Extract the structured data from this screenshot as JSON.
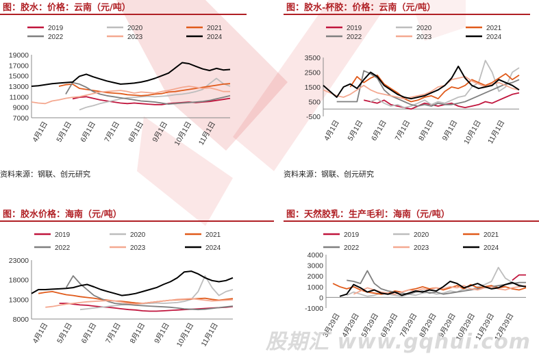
{
  "watermark": {
    "text": "股期汇 www.gqhui.com"
  },
  "panels": [
    {
      "title": "图：胶水：价格：云南（元/吨）",
      "source": "资料来源：钢联、创元研究",
      "chart_data": {
        "type": "line",
        "ylim": [
          7000,
          19000
        ],
        "yticks": [
          7000,
          9000,
          11000,
          13000,
          15000,
          17000,
          19000
        ],
        "xticks": [
          "4月1日",
          "5月1日",
          "6月1日",
          "7月1日",
          "8月1日",
          "9月1日",
          "10月1日",
          "11月1日"
        ],
        "series": [
          {
            "name": "2019",
            "color": "#c0143c",
            "values": [
              null,
              null,
              null,
              null,
              null,
              null,
              10600,
              10900,
              11000,
              10700,
              10400,
              10200,
              10000,
              9800,
              9700,
              9800,
              9700,
              9600,
              9500,
              9500,
              9700,
              9800,
              9900,
              10000,
              9900,
              10000,
              10100,
              10300,
              10500,
              10700
            ]
          },
          {
            "name": "2020",
            "color": "#bdbdbd",
            "values": [
              null,
              null,
              null,
              null,
              null,
              null,
              null,
              8500,
              9000,
              9300,
              9700,
              10000,
              10300,
              10600,
              10800,
              10900,
              11000,
              11100,
              11000,
              11100,
              11200,
              11400,
              11500,
              11700,
              12000,
              12400,
              13500,
              14500,
              13500,
              13000
            ]
          },
          {
            "name": "2021",
            "color": "#e05a1a",
            "values": [
              null,
              null,
              null,
              null,
              13000,
              13300,
              13400,
              12600,
              12400,
              12200,
              12000,
              11800,
              11700,
              11600,
              11400,
              11300,
              11200,
              11300,
              11500,
              11600,
              11900,
              12000,
              12200,
              12400,
              12600,
              12800,
              13000,
              13200,
              13400,
              13500
            ]
          },
          {
            "name": "2022",
            "color": "#7f7f7f",
            "values": [
              null,
              null,
              null,
              null,
              null,
              11500,
              13700,
              13400,
              12800,
              12000,
              11500,
              11200,
              11000,
              10800,
              10600,
              10400,
              10200,
              10100,
              10000,
              9800,
              9600,
              9700,
              9800,
              9900,
              10000,
              10100,
              10300,
              10600,
              10900,
              11200
            ]
          },
          {
            "name": "2023",
            "color": "#f4a890",
            "values": [
              10000,
              9800,
              9700,
              10200,
              10400,
              10700,
              10900,
              11000,
              11300,
              11600,
              11900,
              12000,
              12100,
              12200,
              12000,
              11700,
              11900,
              11800,
              11700,
              12000,
              12200,
              12500,
              12800,
              13000,
              12800,
              12600,
              12700,
              12400,
              12000,
              12000
            ]
          },
          {
            "name": "2024",
            "color": "#000000",
            "values": [
              13000,
              13100,
              13300,
              13500,
              13600,
              13700,
              13800,
              14900,
              15300,
              14800,
              14400,
              14000,
              13700,
              13400,
              13500,
              13600,
              13800,
              14100,
              14500,
              15000,
              15500,
              16500,
              17500,
              17300,
              16800,
              16300,
              16000,
              16400,
              16100,
              16200
            ]
          }
        ]
      }
    },
    {
      "title": "图：胶水-杯胶：价格：云南（元/吨）",
      "source": "资料来源：钢联、创元研究",
      "chart_data": {
        "type": "line",
        "ylim": [
          -500,
          3500
        ],
        "yticks": [
          -500,
          500,
          1500,
          2500,
          3500
        ],
        "ytick_labels": [
          "-500",
          "500",
          "1500",
          "2500",
          "3500"
        ],
        "xticks": [
          "4月1日",
          "5月1日",
          "6月1日",
          "7月1日",
          "8月1日",
          "9月1日",
          "10月1日",
          "11月1日"
        ],
        "series": [
          {
            "name": "2019",
            "color": "#c0143c",
            "values": [
              null,
              null,
              null,
              null,
              null,
              null,
              600,
              500,
              400,
              600,
              300,
              200,
              100,
              0,
              200,
              400,
              300,
              200,
              300,
              400,
              200,
              100,
              200,
              300,
              500,
              400,
              600,
              800,
              1000,
              1100
            ]
          },
          {
            "name": "2020",
            "color": "#bdbdbd",
            "values": [
              null,
              null,
              null,
              null,
              null,
              null,
              null,
              500,
              700,
              400,
              200,
              300,
              100,
              200,
              400,
              600,
              300,
              500,
              400,
              600,
              800,
              900,
              1500,
              1800,
              3300,
              2500,
              1200,
              1500,
              2500,
              2800
            ]
          },
          {
            "name": "2021",
            "color": "#e05a1a",
            "values": [
              null,
              null,
              null,
              null,
              1500,
              2200,
              1800,
              2100,
              2300,
              1700,
              1400,
              1100,
              700,
              500,
              600,
              800,
              900,
              700,
              1200,
              1500,
              1400,
              1600,
              2000,
              1800,
              1600,
              1800,
              2100,
              2400,
              2000,
              2300
            ]
          },
          {
            "name": "2022",
            "color": "#7f7f7f",
            "values": [
              null,
              null,
              500,
              500,
              500,
              500,
              2600,
              2400,
              2100,
              1300,
              900,
              700,
              500,
              300,
              200,
              300,
              200,
              400,
              300,
              300,
              400,
              500,
              700,
              900,
              1100,
              1300,
              1500,
              1700,
              1800,
              2000
            ]
          },
          {
            "name": "2023",
            "color": "#f4a890",
            "values": [
              1300,
              1100,
              900,
              800,
              1000,
              1300,
              1600,
              1300,
              1100,
              1000,
              900,
              800,
              700,
              800,
              900,
              1000,
              1200,
              1500,
              1600,
              2000,
              2100,
              2200,
              1900,
              1700,
              1500,
              1700,
              1800,
              1600,
              1400,
              1300
            ]
          },
          {
            "name": "2024",
            "color": "#000000",
            "values": [
              1600,
              1200,
              800,
              1500,
              1700,
              1400,
              2000,
              2500,
              2200,
              1600,
              1300,
              1000,
              800,
              700,
              800,
              900,
              1100,
              1300,
              1600,
              2100,
              2900,
              2100,
              1600,
              1400,
              1500,
              1600,
              2000,
              1800,
              1600,
              1300
            ]
          }
        ]
      }
    },
    {
      "title": "图：胶水价格：海南（元/吨）",
      "source": "",
      "chart_data": {
        "type": "line",
        "ylim": [
          8000,
          23000
        ],
        "yticks": [
          8000,
          13000,
          18000,
          23000
        ],
        "xticks": [
          "4月1日",
          "5月1日",
          "6月1日",
          "7月1日",
          "8月1日",
          "9月1日",
          "10月1日",
          "11月1日"
        ],
        "series": [
          {
            "name": "2019",
            "color": "#c0143c",
            "values": [
              null,
              null,
              null,
              null,
              12000,
              12000,
              11800,
              11600,
              11500,
              11300,
              11100,
              11000,
              10800,
              10600,
              10400,
              10300,
              10100,
              10000,
              10000,
              10100,
              10200,
              10300,
              10400,
              10500,
              10600,
              10700,
              10800,
              10900,
              11000,
              11200
            ]
          },
          {
            "name": "2020",
            "color": "#bdbdbd",
            "values": [
              null,
              null,
              null,
              null,
              null,
              null,
              null,
              10400,
              10600,
              10800,
              11000,
              11200,
              11400,
              11600,
              11700,
              11800,
              11900,
              12000,
              12100,
              12000,
              12100,
              12200,
              12500,
              13000,
              15000,
              19000,
              16000,
              14000,
              15000,
              15500
            ]
          },
          {
            "name": "2021",
            "color": "#e05a1a",
            "values": [
              null,
              14500,
              14800,
              15000,
              14600,
              14200,
              14000,
              13700,
              13500,
              13300,
              13000,
              12800,
              12600,
              12500,
              12300,
              12100,
              12000,
              12200,
              12400,
              12600,
              12800,
              12900,
              13000,
              13100,
              13200,
              13300,
              13000,
              12800,
              13000,
              13200
            ]
          },
          {
            "name": "2022",
            "color": "#7f7f7f",
            "values": [
              null,
              null,
              null,
              null,
              null,
              16000,
              19000,
              17000,
              15500,
              14000,
              13200,
              12500,
              12000,
              11800,
              11700,
              11500,
              11400,
              11300,
              11200,
              11100,
              11000,
              10800,
              10600,
              10500,
              10400,
              10500,
              10700,
              10900,
              11100,
              11300
            ]
          },
          {
            "name": "2023",
            "color": "#f4a890",
            "values": [
              null,
              null,
              11000,
              11200,
              11500,
              11800,
              12000,
              12200,
              12400,
              12500,
              12600,
              12700,
              12600,
              12300,
              12000,
              11800,
              12000,
              12200,
              12400,
              12600,
              12800,
              13000,
              13100,
              13200,
              13000,
              12800,
              12600,
              12700,
              12800,
              12900
            ]
          },
          {
            "name": "2024",
            "color": "#000000",
            "values": [
              14500,
              15500,
              15500,
              15600,
              15700,
              15800,
              16000,
              16500,
              16800,
              16200,
              15500,
              15000,
              14500,
              14000,
              14200,
              14500,
              15000,
              15500,
              16000,
              16800,
              17500,
              18500,
              20000,
              20200,
              19500,
              18500,
              17800,
              17500,
              17800,
              18500
            ]
          }
        ]
      }
    },
    {
      "title": "图：天然胶乳：生产毛利：海南（元/吨）",
      "source": "",
      "chart_data": {
        "type": "line",
        "ylim": [
          -1000,
          4000
        ],
        "yticks": [
          -1000,
          0,
          1000,
          2000,
          3000,
          4000
        ],
        "xticks": [
          "3月29日",
          "4月29日",
          "5月29日",
          "6月29日",
          "7月29日",
          "8月29日",
          "9月29日",
          "10月29日",
          "11月29日",
          "12月29日"
        ],
        "series": [
          {
            "name": "2019",
            "color": "#c0143c",
            "values": [
              null,
              null,
              null,
              null,
              null,
              null,
              null,
              null,
              null,
              null,
              null,
              null,
              null,
              null,
              null,
              null,
              null,
              null,
              null,
              null,
              null,
              null,
              null,
              null,
              null,
              null,
              null,
              1600,
              2100,
              2100
            ]
          },
          {
            "name": "2020",
            "color": "#bdbdbd",
            "values": [
              null,
              null,
              null,
              200,
              500,
              300,
              100,
              200,
              400,
              300,
              200,
              100,
              300,
              200,
              400,
              500,
              300,
              400,
              600,
              500,
              800,
              700,
              1000,
              1200,
              1500,
              2800,
              1800,
              1400,
              1200,
              1000
            ]
          },
          {
            "name": "2021",
            "color": "#e05a1a",
            "values": [
              null,
              1300,
              1000,
              800,
              1000,
              700,
              500,
              400,
              300,
              400,
              600,
              500,
              700,
              800,
              1000,
              800,
              900,
              700,
              900,
              1100,
              800,
              1200,
              900,
              1000,
              1100,
              900,
              1000,
              800,
              700,
              900
            ]
          },
          {
            "name": "2022",
            "color": "#7f7f7f",
            "values": [
              null,
              null,
              null,
              1600,
              1500,
              1300,
              2500,
              1300,
              800,
              600,
              500,
              400,
              300,
              500,
              600,
              400,
              500,
              300,
              400,
              500,
              600,
              700,
              800,
              900,
              1000,
              1100,
              1200,
              1300,
              1400,
              1400
            ]
          },
          {
            "name": "2023",
            "color": "#f4a890",
            "values": [
              null,
              null,
              null,
              null,
              300,
              600,
              900,
              700,
              500,
              400,
              300,
              500,
              700,
              600,
              800,
              700,
              900,
              800,
              1000,
              900,
              1100,
              800,
              700,
              900,
              1000,
              800,
              700,
              900,
              1000,
              1100
            ]
          },
          {
            "name": "2024",
            "color": "#000000",
            "values": [
              null,
              null,
              100,
              300,
              1200,
              900,
              500,
              700,
              400,
              300,
              500,
              200,
              400,
              600,
              500,
              700,
              600,
              1000,
              1500,
              1300,
              900,
              1100,
              1300,
              1000,
              800,
              900,
              1200,
              1400,
              1100,
              1000
            ]
          }
        ]
      }
    }
  ]
}
